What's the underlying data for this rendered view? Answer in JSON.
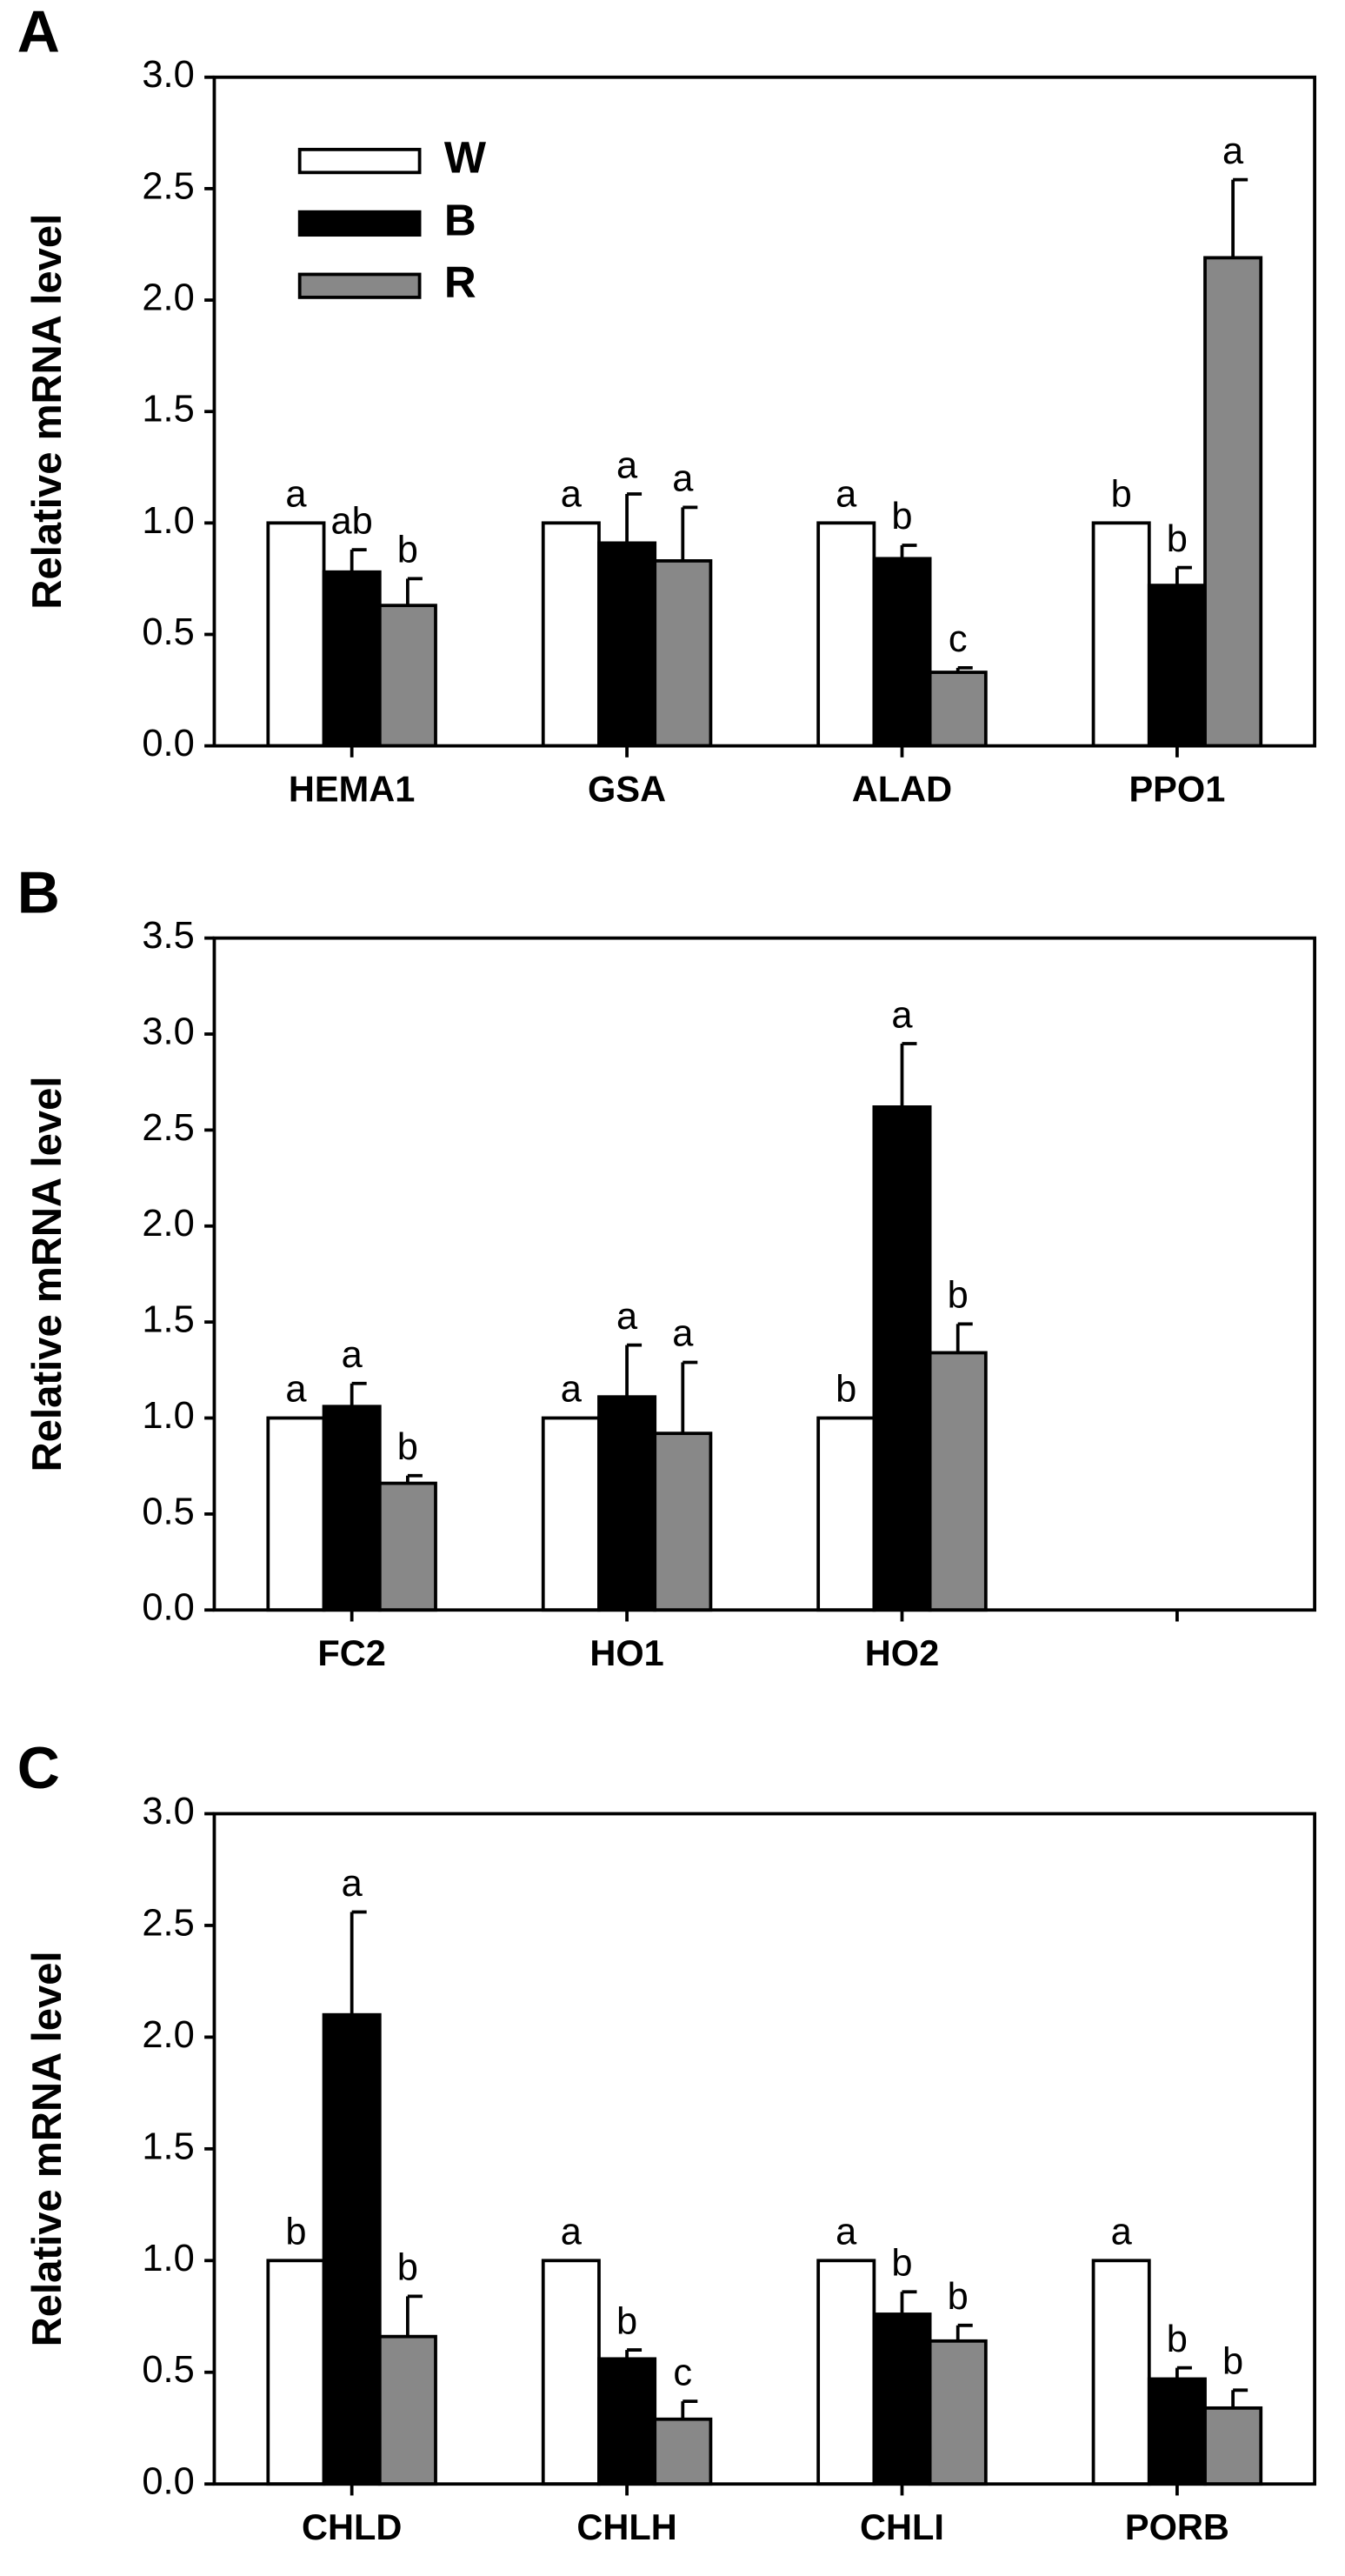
{
  "chart_data": [
    {
      "type": "bar",
      "panel": "A",
      "ylabel": "Relative mRNA level",
      "categories": [
        "HEMA1",
        "GSA",
        "ALAD",
        "PPO1"
      ],
      "series": [
        {
          "name": "W",
          "color": "#ffffff",
          "values": [
            1,
            1,
            1,
            1
          ],
          "errors": [
            0,
            0,
            0,
            0
          ],
          "letters": [
            "a",
            "a",
            "a",
            "b"
          ]
        },
        {
          "name": "B",
          "color": "#000000",
          "values": [
            0.78,
            0.91,
            0.84,
            0.72
          ],
          "errors": [
            0.1,
            0.22,
            0.06,
            0.08
          ],
          "letters": [
            "ab",
            "a",
            "b",
            "b"
          ]
        },
        {
          "name": "R",
          "color": "#888888",
          "values": [
            0.63,
            0.83,
            0.33,
            2.19
          ],
          "errors": [
            0.12,
            0.24,
            0.02,
            0.35
          ],
          "letters": [
            "b",
            "a",
            "c",
            "a"
          ]
        }
      ],
      "ylim": [
        0,
        3
      ],
      "yticks": [
        {
          "value": 0,
          "label": "0.0"
        },
        0.5,
        {
          "value": 1,
          "label": "1.0"
        },
        1.5,
        {
          "value": 2,
          "label": "2.0"
        },
        2.5,
        {
          "value": 3,
          "label": "3.0"
        }
      ],
      "legend": "upper left"
    },
    {
      "type": "bar",
      "panel": "B",
      "ylabel": "Relative mRNA level",
      "categories": [
        "FC2",
        "HO1",
        "HO2",
        null
      ],
      "series": [
        {
          "name": "W",
          "color": "#ffffff",
          "values": [
            1,
            1,
            1,
            null
          ],
          "errors": [
            0,
            0,
            0,
            null
          ],
          "letters": [
            "a",
            "a",
            "b",
            null
          ]
        },
        {
          "name": "B",
          "color": "#000000",
          "values": [
            1.06,
            1.11,
            2.62,
            null
          ],
          "errors": [
            0.12,
            0.27,
            0.33,
            null
          ],
          "letters": [
            "a",
            "a",
            "a",
            null
          ]
        },
        {
          "name": "R",
          "color": "#888888",
          "values": [
            0.66,
            0.92,
            1.34,
            null
          ],
          "errors": [
            0.04,
            0.37,
            0.15,
            null
          ],
          "letters": [
            "b",
            "a",
            "b",
            null
          ]
        }
      ],
      "ylim": [
        0,
        3.5
      ],
      "yticks": [
        {
          "value": 0,
          "label": "0.0"
        },
        0.5,
        {
          "value": 1,
          "label": "1.0"
        },
        1.5,
        {
          "value": 2,
          "label": "2.0"
        },
        2.5,
        {
          "value": 3,
          "label": "3.0"
        },
        3.5
      ]
    },
    {
      "type": "bar",
      "panel": "C",
      "ylabel": "Relative mRNA level",
      "categories": [
        "CHLD",
        "CHLH",
        "CHLI",
        "PORB"
      ],
      "series": [
        {
          "name": "W",
          "color": "#ffffff",
          "values": [
            1,
            1,
            1,
            1
          ],
          "errors": [
            0,
            0,
            0,
            0
          ],
          "letters": [
            "b",
            "a",
            "a",
            "a"
          ]
        },
        {
          "name": "B",
          "color": "#000000",
          "values": [
            2.1,
            0.56,
            0.76,
            0.47
          ],
          "errors": [
            0.46,
            0.04,
            0.1,
            0.05
          ],
          "letters": [
            "a",
            "b",
            "b",
            "b"
          ]
        },
        {
          "name": "R",
          "color": "#888888",
          "values": [
            0.66,
            0.29,
            0.64,
            0.34
          ],
          "errors": [
            0.18,
            0.08,
            0.07,
            0.08
          ],
          "letters": [
            "b",
            "c",
            "b",
            "b"
          ]
        }
      ],
      "ylim": [
        0,
        3
      ],
      "yticks": [
        {
          "value": 0,
          "label": "0.0"
        },
        0.5,
        {
          "value": 1,
          "label": "1.0"
        },
        1.5,
        {
          "value": 2,
          "label": "2.0"
        },
        2.5,
        {
          "value": 3,
          "label": "3.0"
        }
      ]
    }
  ]
}
